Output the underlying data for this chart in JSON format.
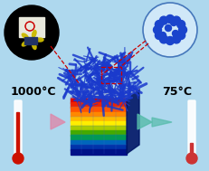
{
  "bg_color": "#aed8ee",
  "temp_left": "1000°C",
  "temp_right": "75°C",
  "nanofiber_color": "#1a3acc",
  "sphere_color": "#1a44cc",
  "rainbow_colors": [
    "#dd0000",
    "#ee2200",
    "#ff5500",
    "#ff8800",
    "#ffbb00",
    "#ffee00",
    "#aacc00",
    "#44aa00",
    "#009955",
    "#0066bb",
    "#0033aa",
    "#001188"
  ],
  "box_right_color": "#001566",
  "box_top_color": "#8899cc",
  "left_circle_bg": "#111111",
  "right_circle_bg": "#d0e8f8",
  "right_circle_border": "#4477bb",
  "arrow_left_color": "#dd88aa",
  "arrow_right_color": "#55bbaa",
  "therm_left_color": "#cc1100",
  "therm_right_color": "#cc3333",
  "dash_color": "#cc0000",
  "text_color": "#000000",
  "temp_fontsize": 9
}
